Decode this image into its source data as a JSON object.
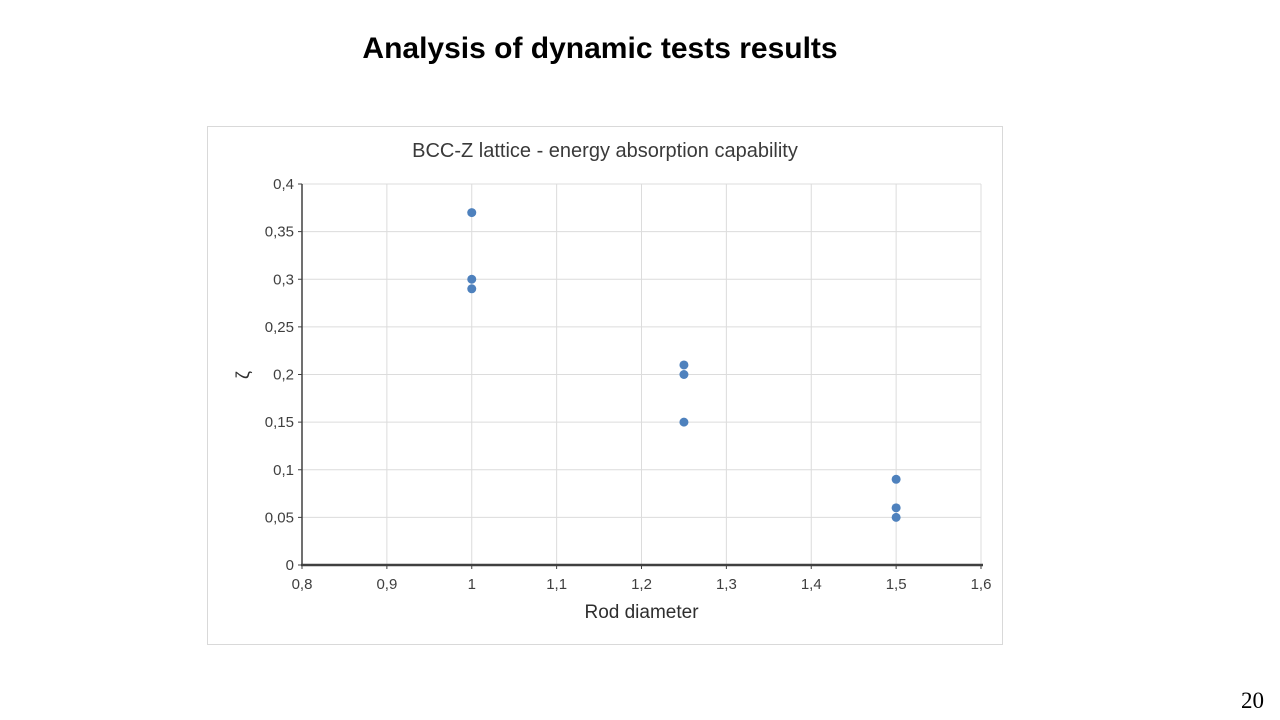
{
  "slide": {
    "title": "Analysis of dynamic tests results",
    "page_number": "20"
  },
  "chart_data": {
    "type": "scatter",
    "title": "BCC-Z lattice - energy absorption capability",
    "xlabel": "Rod diameter",
    "ylabel": "ζ",
    "xlim": [
      0.8,
      1.6
    ],
    "ylim": [
      0,
      0.4
    ],
    "grid": true,
    "legend": "none",
    "marker_color": "#4E81BD",
    "colors": {
      "gridline": "#DCDCDC",
      "axis": "#404040",
      "tick_label": "#3F3F3F",
      "chart_border": "#D9D9D9"
    },
    "x_ticks": [
      {
        "v": 0.8,
        "label": "0,8"
      },
      {
        "v": 0.9,
        "label": "0,9"
      },
      {
        "v": 1.0,
        "label": "1"
      },
      {
        "v": 1.1,
        "label": "1,1"
      },
      {
        "v": 1.2,
        "label": "1,2"
      },
      {
        "v": 1.3,
        "label": "1,3"
      },
      {
        "v": 1.4,
        "label": "1,4"
      },
      {
        "v": 1.5,
        "label": "1,5"
      },
      {
        "v": 1.6,
        "label": "1,6"
      }
    ],
    "y_ticks": [
      {
        "v": 0,
        "label": "0"
      },
      {
        "v": 0.05,
        "label": "0,05"
      },
      {
        "v": 0.1,
        "label": "0,1"
      },
      {
        "v": 0.15,
        "label": "0,15"
      },
      {
        "v": 0.2,
        "label": "0,2"
      },
      {
        "v": 0.25,
        "label": "0,25"
      },
      {
        "v": 0.3,
        "label": "0,3"
      },
      {
        "v": 0.35,
        "label": "0,35"
      },
      {
        "v": 0.4,
        "label": "0,4"
      }
    ],
    "points": [
      {
        "x": 1.0,
        "y": 0.37
      },
      {
        "x": 1.0,
        "y": 0.3
      },
      {
        "x": 1.0,
        "y": 0.29
      },
      {
        "x": 1.25,
        "y": 0.21
      },
      {
        "x": 1.25,
        "y": 0.2
      },
      {
        "x": 1.25,
        "y": 0.15
      },
      {
        "x": 1.5,
        "y": 0.09
      },
      {
        "x": 1.5,
        "y": 0.06
      },
      {
        "x": 1.5,
        "y": 0.05
      }
    ]
  }
}
